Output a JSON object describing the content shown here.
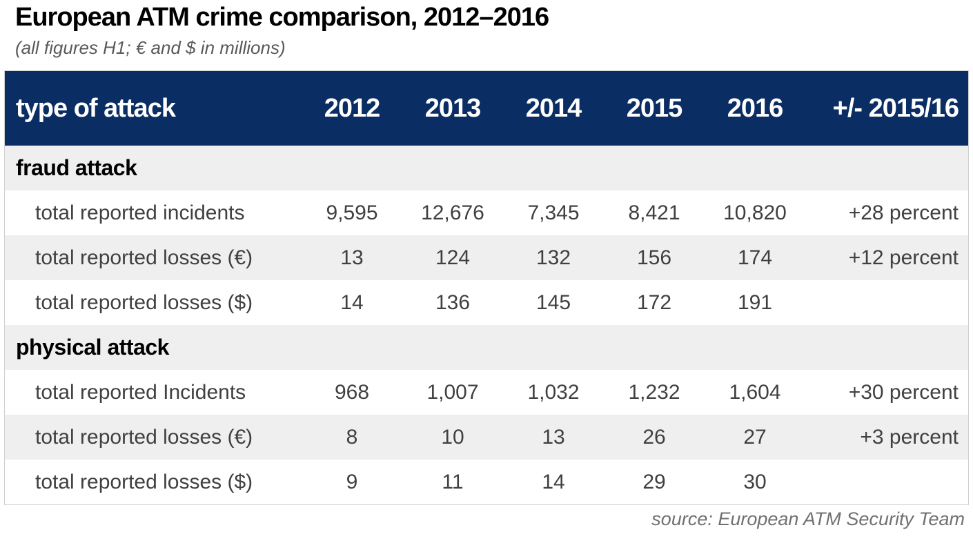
{
  "title": "European ATM crime comparison, 2012–2016",
  "subtitle": "(all figures H1; € and $ in millions)",
  "source": "source: European ATM Security Team",
  "colors": {
    "header_bg": "#0a2d63",
    "header_text": "#ffffff",
    "stripe": "#efefef"
  },
  "chart_data": {
    "type": "table",
    "columns": [
      "type of attack",
      "2012",
      "2013",
      "2014",
      "2015",
      "2016",
      "+/- 2015/16"
    ],
    "sections": [
      {
        "name": "fraud attack",
        "rows": [
          {
            "label": "total reported incidents",
            "values": [
              "9,595",
              "12,676",
              "7,345",
              "8,421",
              "10,820"
            ],
            "change": "+28 percent"
          },
          {
            "label": "total reported losses (€)",
            "values": [
              "13",
              "124",
              "132",
              "156",
              "174"
            ],
            "change": "+12 percent"
          },
          {
            "label": "total reported losses ($)",
            "values": [
              "14",
              "136",
              "145",
              "172",
              "191"
            ],
            "change": ""
          }
        ]
      },
      {
        "name": "physical attack",
        "rows": [
          {
            "label": "total reported Incidents",
            "values": [
              "968",
              "1,007",
              "1,032",
              "1,232",
              "1,604"
            ],
            "change": "+30 percent"
          },
          {
            "label": "total reported losses (€)",
            "values": [
              "8",
              "10",
              "13",
              "26",
              "27"
            ],
            "change": "+3 percent"
          },
          {
            "label": "total reported losses ($)",
            "values": [
              "9",
              "11",
              "14",
              "29",
              "30"
            ],
            "change": ""
          }
        ]
      }
    ]
  }
}
